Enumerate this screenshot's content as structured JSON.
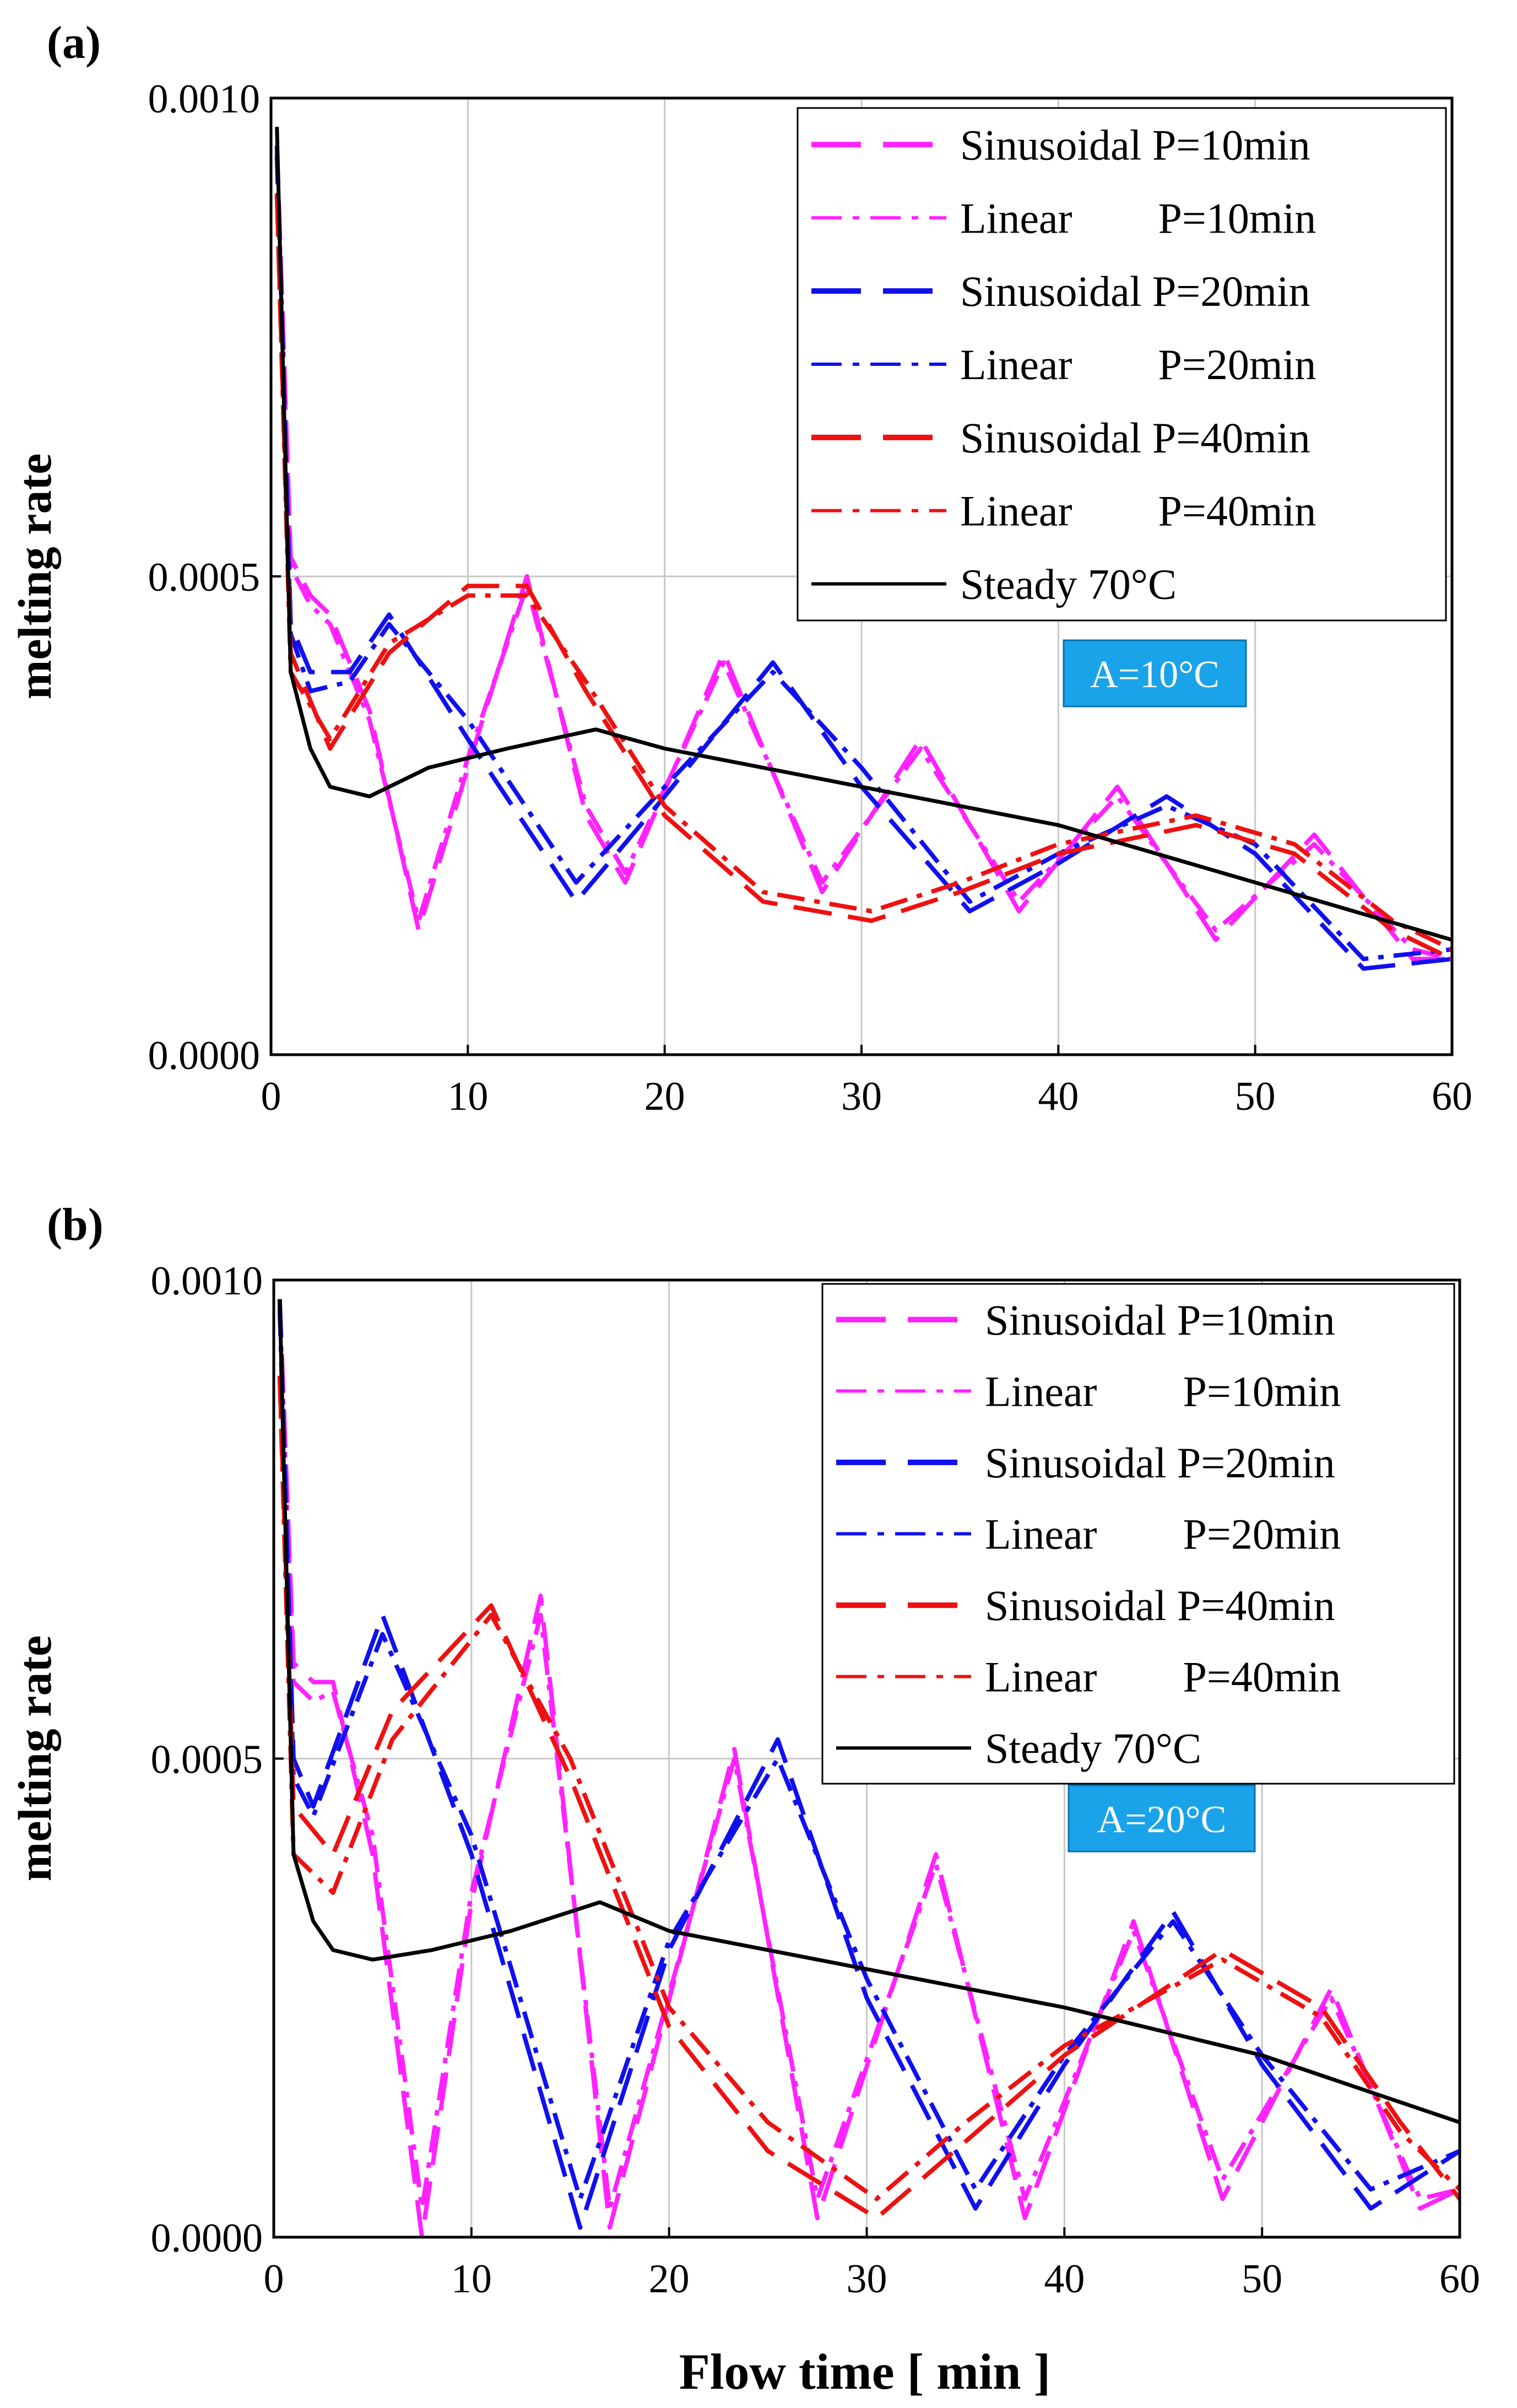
{
  "figure": {
    "xlabel": "Flow time [ min ]"
  },
  "legend_entries": [
    {
      "key": "sin10",
      "label": "Sinusoidal P=10min",
      "color": "#ff22ff",
      "style": "dash"
    },
    {
      "key": "lin10",
      "label": "Linear        P=10min",
      "color": "#ff22ff",
      "style": "dashdot"
    },
    {
      "key": "sin20",
      "label": "Sinusoidal P=20min",
      "color": "#1010ee",
      "style": "dash"
    },
    {
      "key": "lin20",
      "label": "Linear        P=20min",
      "color": "#1010ee",
      "style": "dashdot"
    },
    {
      "key": "sin40",
      "label": "Sinusoidal P=40min",
      "color": "#ee1111",
      "style": "dash"
    },
    {
      "key": "lin40",
      "label": "Linear        P=40min",
      "color": "#ee1111",
      "style": "dashdot"
    },
    {
      "key": "steady",
      "label": "Steady 70°C",
      "color": "#000000",
      "style": "solid"
    }
  ],
  "chart_data": [
    {
      "type": "line",
      "panel_label": "(a)",
      "annotation": "A=10°C",
      "ylabel": "melting rate",
      "xlim": [
        0,
        60
      ],
      "ylim": [
        0,
        0.001
      ],
      "xticks": [
        "0",
        "10",
        "20",
        "30",
        "40",
        "50",
        "60"
      ],
      "yticks": [
        "0.0000",
        "0.0005",
        "0.0010"
      ],
      "grid": true,
      "legend": "top-right",
      "series": [
        {
          "key": "sin10",
          "name": "Sinusoidal P=10min",
          "x": [
            0.3,
            1,
            2,
            3,
            5,
            7.5,
            10,
            13,
            16,
            18,
            23,
            28,
            33,
            38,
            43,
            48,
            53,
            58,
            60
          ],
          "y": [
            0.00095,
            0.00052,
            0.00048,
            0.00046,
            0.00036,
            0.00013,
            0.0003,
            0.0005,
            0.00025,
            0.00018,
            0.00042,
            0.00017,
            0.00033,
            0.00015,
            0.00028,
            0.00012,
            0.00023,
            0.0001,
            0.0001
          ]
        },
        {
          "key": "lin10",
          "name": "Linear P=10min",
          "x": [
            0.3,
            1,
            2,
            3,
            5,
            7.5,
            10,
            13,
            16,
            18,
            23,
            28,
            33,
            38,
            43,
            48,
            53,
            58,
            60
          ],
          "y": [
            0.00094,
            0.00051,
            0.00047,
            0.00045,
            0.00035,
            0.00014,
            0.00031,
            0.00049,
            0.00026,
            0.00019,
            0.00041,
            0.00018,
            0.00032,
            0.00016,
            0.00027,
            0.00013,
            0.00022,
            0.00011,
            0.0001
          ]
        },
        {
          "key": "sin20",
          "name": "Sinusoidal P=20min",
          "x": [
            0.3,
            1,
            2,
            4,
            6,
            10,
            15.5,
            20,
            25.5,
            30,
            35.5,
            40,
            45.5,
            50,
            55.5,
            60
          ],
          "y": [
            0.00095,
            0.00045,
            0.0004,
            0.0004,
            0.00046,
            0.00033,
            0.00016,
            0.00027,
            0.00041,
            0.00028,
            0.00015,
            0.0002,
            0.00027,
            0.00021,
            9e-05,
            0.0001
          ]
        },
        {
          "key": "lin20",
          "name": "Linear P=20min",
          "x": [
            0.3,
            1,
            2,
            4,
            6,
            10,
            15.5,
            20,
            25.5,
            30,
            35.5,
            40,
            45.5,
            50,
            55.5,
            60
          ],
          "y": [
            0.00094,
            0.00044,
            0.00038,
            0.00039,
            0.00045,
            0.00035,
            0.00018,
            0.00028,
            0.0004,
            0.0003,
            0.00016,
            0.00021,
            0.00026,
            0.00022,
            0.0001,
            0.00011
          ]
        },
        {
          "key": "sin40",
          "name": "Sinusoidal P=40min",
          "x": [
            0.3,
            1,
            3,
            6,
            10,
            13,
            16,
            20,
            25,
            30.5,
            35,
            40,
            47,
            52,
            57,
            60
          ],
          "y": [
            0.0009,
            0.00042,
            0.00032,
            0.00042,
            0.00049,
            0.00049,
            0.00038,
            0.00025,
            0.00016,
            0.00014,
            0.00017,
            0.00021,
            0.00024,
            0.00021,
            0.00013,
            0.0001
          ]
        },
        {
          "key": "lin40",
          "name": "Linear P=40min",
          "x": [
            0.3,
            1,
            3,
            6,
            10,
            13,
            16,
            20,
            25,
            30.5,
            35,
            40,
            47,
            52,
            57,
            60
          ],
          "y": [
            0.0009,
            0.0004,
            0.00033,
            0.00043,
            0.00048,
            0.00048,
            0.00039,
            0.00026,
            0.00017,
            0.00015,
            0.00018,
            0.00022,
            0.00025,
            0.00022,
            0.00014,
            0.00011
          ]
        },
        {
          "key": "steady",
          "name": "Steady 70°C",
          "x": [
            0.3,
            1,
            2,
            3,
            5,
            8,
            12,
            16.5,
            20,
            30,
            40,
            50,
            60
          ],
          "y": [
            0.00097,
            0.0004,
            0.00032,
            0.00028,
            0.00027,
            0.0003,
            0.00032,
            0.00034,
            0.00032,
            0.00028,
            0.00024,
            0.00018,
            0.00012
          ]
        }
      ]
    },
    {
      "type": "line",
      "panel_label": "(b)",
      "annotation": "A=20°C",
      "ylabel": "melting rate",
      "xlim": [
        0,
        60
      ],
      "ylim": [
        0,
        0.001
      ],
      "xticks": [
        "0",
        "10",
        "20",
        "30",
        "40",
        "50",
        "60"
      ],
      "yticks": [
        "0.0000",
        "0.0005",
        "0.0010"
      ],
      "grid": true,
      "legend": "top-right",
      "series": [
        {
          "key": "sin10",
          "name": "Sinusoidal P=10min",
          "x": [
            0.3,
            1,
            2,
            3,
            5,
            7.5,
            10,
            13.5,
            17,
            23.3,
            27.5,
            33.5,
            38,
            43.5,
            48,
            53.5,
            58,
            60
          ],
          "y": [
            0.00098,
            0.0006,
            0.00058,
            0.00058,
            0.0004,
            0.0,
            0.00035,
            0.00067,
            1e-05,
            0.00051,
            2e-05,
            0.0004,
            2e-05,
            0.00033,
            4e-05,
            0.00026,
            3e-05,
            5e-05
          ]
        },
        {
          "key": "lin10",
          "name": "Linear P=10min",
          "x": [
            0.3,
            1,
            2,
            3,
            5,
            7.5,
            10,
            13.5,
            17,
            23.3,
            27.5,
            33.5,
            38,
            43.5,
            48,
            53.5,
            58,
            60
          ],
          "y": [
            0.00097,
            0.00058,
            0.00056,
            0.00057,
            0.00042,
            3e-05,
            0.00036,
            0.00065,
            3e-05,
            0.0005,
            4e-05,
            0.00039,
            4e-05,
            0.00032,
            6e-05,
            0.00025,
            4e-05,
            5e-05
          ]
        },
        {
          "key": "sin20",
          "name": "Sinusoidal P=20min",
          "x": [
            0.3,
            1,
            2,
            5.5,
            10,
            15.5,
            20,
            25.5,
            30,
            35.5,
            40,
            45.5,
            50,
            55.5,
            60
          ],
          "y": [
            0.00098,
            0.0005,
            0.00045,
            0.00065,
            0.0004,
            1e-05,
            0.0003,
            0.00052,
            0.00025,
            3e-05,
            0.00018,
            0.00034,
            0.00018,
            3e-05,
            9e-05
          ]
        },
        {
          "key": "lin20",
          "name": "Linear P=20min",
          "x": [
            0.3,
            1,
            2,
            5.5,
            10,
            15.5,
            20,
            25.5,
            30,
            35.5,
            40,
            45.5,
            50,
            55.5,
            60
          ],
          "y": [
            0.00097,
            0.00048,
            0.00044,
            0.00063,
            0.00042,
            4e-05,
            0.00031,
            0.0005,
            0.00027,
            5e-05,
            0.00019,
            0.00033,
            0.00019,
            5e-05,
            9e-05
          ]
        },
        {
          "key": "sin40",
          "name": "Sinusoidal P=40min",
          "x": [
            0.3,
            1,
            3,
            6,
            11,
            15,
            20,
            25,
            30.5,
            35,
            40,
            48,
            53,
            57,
            60
          ],
          "y": [
            0.0009,
            0.00045,
            0.0004,
            0.00055,
            0.00066,
            0.00048,
            0.00022,
            9e-05,
            2e-05,
            0.0001,
            0.00019,
            0.0003,
            0.00024,
            0.00012,
            4e-05
          ]
        },
        {
          "key": "lin40",
          "name": "Linear P=40min",
          "x": [
            0.3,
            1,
            3,
            6,
            11,
            15,
            20,
            25,
            30.5,
            35,
            40,
            48,
            53,
            57,
            60
          ],
          "y": [
            0.0009,
            0.0004,
            0.00036,
            0.00052,
            0.00065,
            0.0005,
            0.00024,
            0.00012,
            4e-05,
            0.00012,
            0.0002,
            0.00029,
            0.00023,
            0.00011,
            5e-05
          ]
        },
        {
          "key": "steady",
          "name": "Steady 70°C",
          "x": [
            0.3,
            1,
            2,
            3,
            5,
            8,
            12,
            16.5,
            20,
            30,
            40,
            50,
            60
          ],
          "y": [
            0.00098,
            0.0004,
            0.00033,
            0.0003,
            0.00029,
            0.0003,
            0.00032,
            0.00035,
            0.00032,
            0.00028,
            0.00024,
            0.00019,
            0.00012
          ]
        }
      ]
    }
  ]
}
